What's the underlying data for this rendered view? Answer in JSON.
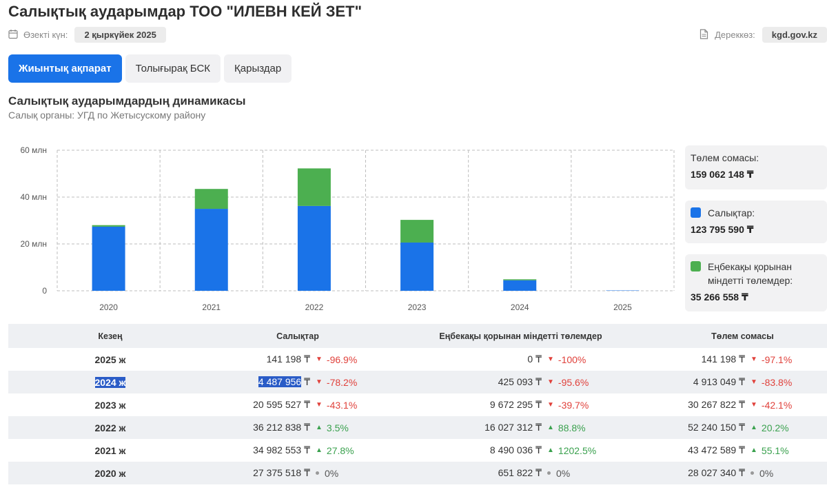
{
  "page": {
    "title": "Салықтық аударымдар ТОО \"ИЛЕВН КЕЙ ЗЕТ\"",
    "relevance_label": "Өзекті күн:",
    "relevance_date": "2 қыркүйек 2025",
    "source_label": "Дереккөз:",
    "source_value": "kgd.gov.kz"
  },
  "tabs": [
    {
      "label": "Жиынтық ақпарат",
      "active": true
    },
    {
      "label": "Толығырақ БСК",
      "active": false
    },
    {
      "label": "Қарыздар",
      "active": false
    }
  ],
  "section": {
    "title": "Салықтық аударымдардың динамикасы",
    "subtitle": "Салық органы: УГД по Жетысускому району"
  },
  "legend": {
    "total_label": "Төлем сомасы:",
    "total_value": "159 062 148 ₸",
    "taxes_label": "Салықтар:",
    "taxes_value": "123 795 590 ₸",
    "payroll_label": "Еңбекақы қорынан міндетті төлемдер:",
    "payroll_value": "35 266 558 ₸"
  },
  "colors": {
    "taxes": "#1a73e8",
    "payroll": "#4caf50",
    "accent": "#1a73e8",
    "up": "#3aa14e",
    "down": "#e0413b"
  },
  "chart_data": {
    "type": "bar",
    "stacked": true,
    "categories": [
      "2020",
      "2021",
      "2022",
      "2023",
      "2024",
      "2025"
    ],
    "series": [
      {
        "name": "Салықтар",
        "values": [
          27375518,
          34982553,
          36212838,
          20595527,
          4487956,
          141198
        ]
      },
      {
        "name": "Еңбекақы қорынан міндетті төлемдер",
        "values": [
          651822,
          8490036,
          16027312,
          9672295,
          425093,
          0
        ]
      }
    ],
    "ylim": [
      0,
      60000000
    ],
    "yticks": [
      {
        "value": 0,
        "label": "0"
      },
      {
        "value": 20000000,
        "label": "20 млн"
      },
      {
        "value": 40000000,
        "label": "40 млн"
      },
      {
        "value": 60000000,
        "label": "60 млн"
      }
    ],
    "grid": true
  },
  "table": {
    "headers": [
      "Кезең",
      "Салықтар",
      "Еңбекақы қорынан міндетті төлемдер",
      "Төлем сомасы"
    ],
    "rows": [
      {
        "period": "2025 ж",
        "tax": "141 198 ₸",
        "tax_chg": "-96.9%",
        "tax_dir": "down",
        "pay": "0 ₸",
        "pay_chg": "-100%",
        "pay_dir": "down",
        "total": "141 198 ₸",
        "total_chg": "-97.1%",
        "total_dir": "down"
      },
      {
        "period": "2024 ж",
        "tax": "4 487 956 ₸",
        "tax_chg": "-78.2%",
        "tax_dir": "down",
        "pay": "425 093 ₸",
        "pay_chg": "-95.6%",
        "pay_dir": "down",
        "total": "4 913 049 ₸",
        "total_chg": "-83.8%",
        "total_dir": "down",
        "selected": true
      },
      {
        "period": "2023 ж",
        "tax": "20 595 527 ₸",
        "tax_chg": "-43.1%",
        "tax_dir": "down",
        "pay": "9 672 295 ₸",
        "pay_chg": "-39.7%",
        "pay_dir": "down",
        "total": "30 267 822 ₸",
        "total_chg": "-42.1%",
        "total_dir": "down"
      },
      {
        "period": "2022 ж",
        "tax": "36 212 838 ₸",
        "tax_chg": "3.5%",
        "tax_dir": "up",
        "pay": "16 027 312 ₸",
        "pay_chg": "88.8%",
        "pay_dir": "up",
        "total": "52 240 150 ₸",
        "total_chg": "20.2%",
        "total_dir": "up"
      },
      {
        "period": "2021 ж",
        "tax": "34 982 553 ₸",
        "tax_chg": "27.8%",
        "tax_dir": "up",
        "pay": "8 490 036 ₸",
        "pay_chg": "1202.5%",
        "pay_dir": "up",
        "total": "43 472 589 ₸",
        "total_chg": "55.1%",
        "total_dir": "up"
      },
      {
        "period": "2020 ж",
        "tax": "27 375 518 ₸",
        "tax_chg": "0%",
        "tax_dir": "flat",
        "pay": "651 822 ₸",
        "pay_chg": "0%",
        "pay_dir": "flat",
        "total": "28 027 340 ₸",
        "total_chg": "0%",
        "total_dir": "flat"
      }
    ]
  }
}
